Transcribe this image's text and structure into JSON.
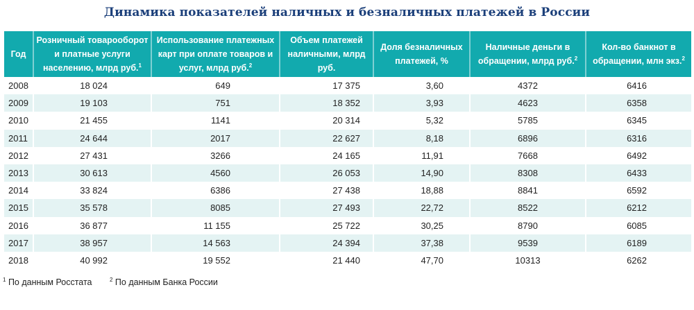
{
  "title": "Динамика показателей наличных и безналичных платежей в России",
  "colors": {
    "header_bg": "#12aaae",
    "header_text": "#ffffff",
    "alt_row_bg": "#e4f3f3",
    "title_color": "#1b3f7a"
  },
  "table": {
    "headers": [
      {
        "text": "Год",
        "sup": ""
      },
      {
        "text": "Розничный товарооборот и платные услуги населению, млрд руб.",
        "sup": "1"
      },
      {
        "text": "Использование платежных карт при оплате товаров и услуг, млрд руб.",
        "sup": "2"
      },
      {
        "text": "Объем платежей наличными, млрд руб.",
        "sup": ""
      },
      {
        "text": "Доля безналичных платежей, %",
        "sup": ""
      },
      {
        "text": "Наличные деньги в обращении, млрд руб.",
        "sup": "2"
      },
      {
        "text": "Кол-во банкнот в обращении, млн экз.",
        "sup": "2"
      }
    ],
    "rows": [
      [
        "2008",
        "18 024",
        "649",
        "17 375",
        "3,60",
        "4372",
        "6416"
      ],
      [
        "2009",
        "19 103",
        "751",
        "18 352",
        "3,93",
        "4623",
        "6358"
      ],
      [
        "2010",
        "21 455",
        "1141",
        "20 314",
        "5,32",
        "5785",
        "6345"
      ],
      [
        "2011",
        "24 644",
        "2017",
        "22 627",
        "8,18",
        "6896",
        "6316"
      ],
      [
        "2012",
        "27 431",
        "3266",
        "24 165",
        "11,91",
        "7668",
        "6492"
      ],
      [
        "2013",
        "30 613",
        "4560",
        "26 053",
        "14,90",
        "8308",
        "6433"
      ],
      [
        "2014",
        "33 824",
        "6386",
        "27 438",
        "18,88",
        "8841",
        "6592"
      ],
      [
        "2015",
        "35 578",
        "8085",
        "27 493",
        "22,72",
        "8522",
        "6212"
      ],
      [
        "2016",
        "36 877",
        "11 155",
        "25 722",
        "30,25",
        "8790",
        "6085"
      ],
      [
        "2017",
        "38 957",
        "14 563",
        "24 394",
        "37,38",
        "9539",
        "6189"
      ],
      [
        "2018",
        "40 992",
        "19 552",
        "21 440",
        "47,70",
        "10313",
        "6262"
      ]
    ]
  },
  "footnotes": [
    {
      "sup": "1",
      "text": "По данным Росстата"
    },
    {
      "sup": "2",
      "text": "По данным Банка России"
    }
  ]
}
